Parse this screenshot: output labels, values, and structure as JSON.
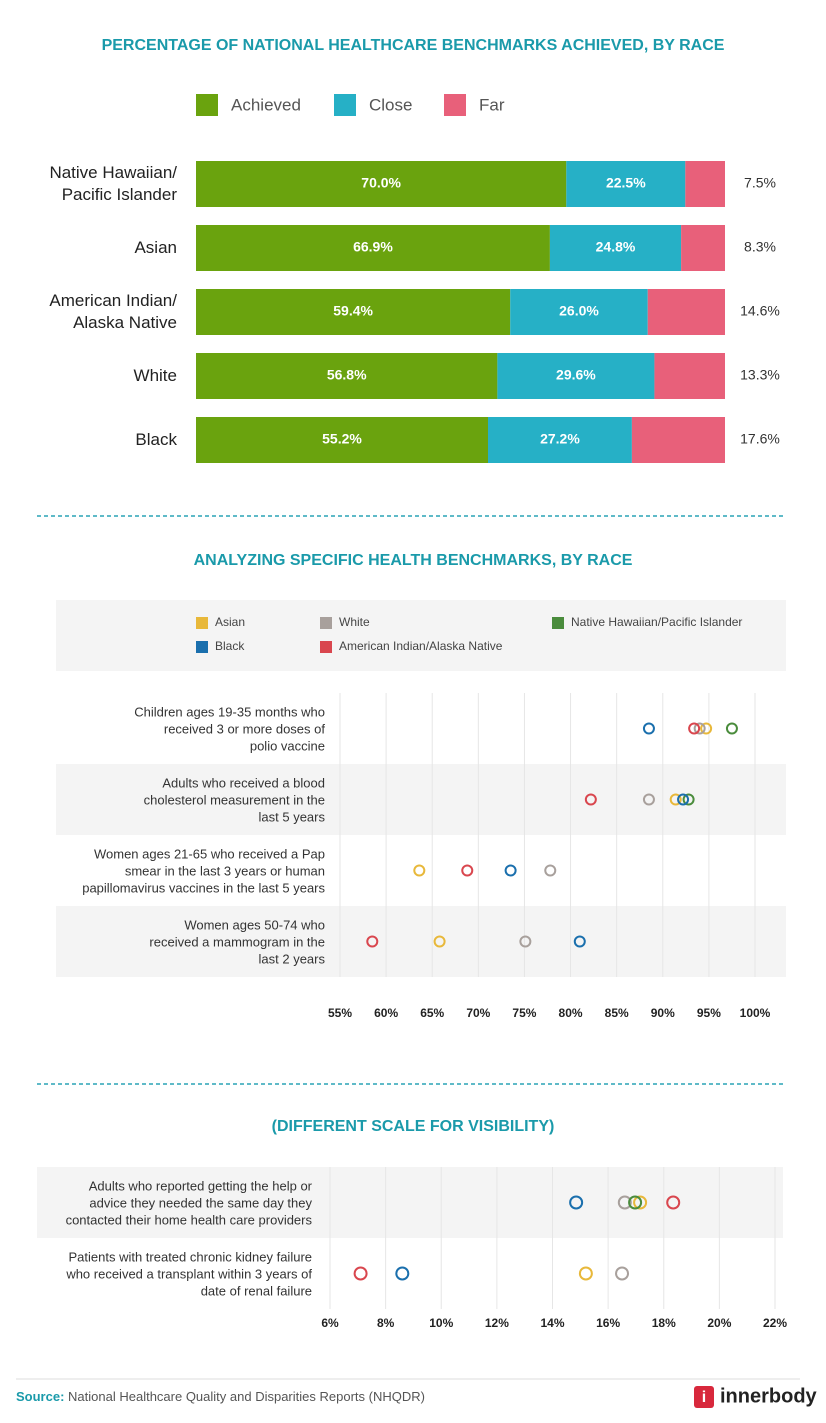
{
  "chart_data": [
    {
      "type": "bar",
      "orientation": "horizontal",
      "stacked": true,
      "title": "PERCENTAGE OF NATIONAL HEALTHCARE BENCHMARKS ACHIEVED, BY RACE",
      "categories": [
        "Native Hawaiian/\nPacific Islander",
        "Asian",
        "American Indian/\nAlaska Native",
        "White",
        "Black"
      ],
      "series": [
        {
          "name": "Achieved",
          "color": "#6aa30e",
          "values": [
            70.0,
            66.9,
            59.4,
            56.8,
            55.2
          ],
          "value_labels": [
            "70.0%",
            "66.9%",
            "59.4%",
            "56.8%",
            "55.2%"
          ]
        },
        {
          "name": "Close",
          "color": "#26b0c6",
          "values": [
            22.5,
            24.8,
            26.0,
            29.6,
            27.2
          ],
          "value_labels": [
            "22.5%",
            "24.8%",
            "26.0%",
            "29.6%",
            "27.2%"
          ]
        },
        {
          "name": "Far",
          "color": "#e8607a",
          "values": [
            7.5,
            8.3,
            14.6,
            13.3,
            17.6
          ],
          "value_labels": [
            "7.5%",
            "8.3%",
            "14.6%",
            "13.3%",
            "17.6%"
          ]
        }
      ]
    },
    {
      "type": "dot",
      "title": "ANALYZING SPECIFIC HEALTH BENCHMARKS, BY RACE",
      "categories": [
        "Children ages 19-35 months who\nreceived 3 or more doses of\npolio vaccine",
        "Adults who received a blood\ncholesterol measurement in the\nlast 5 years",
        "Women ages 21-65 who received a Pap\nsmear in the last 3 years or human\npapillomavirus vaccines in the last 5 years",
        "Women ages 50-74 who\nreceived a mammogram in the\nlast 2 years"
      ],
      "series": [
        {
          "name": "Asian",
          "color": "#e8b83a",
          "values": [
            94.7,
            91.4,
            63.6,
            65.8
          ]
        },
        {
          "name": "White",
          "color": "#a8a09c",
          "values": [
            94.0,
            88.5,
            77.8,
            75.1
          ]
        },
        {
          "name": "Native Hawaiian/Pacific Islander",
          "color": "#4a8c3c",
          "values": [
            97.5,
            92.8,
            null,
            null
          ]
        },
        {
          "name": "Black",
          "color": "#1a6fad",
          "values": [
            88.5,
            92.2,
            73.5,
            81.0
          ]
        },
        {
          "name": "American Indian/Alaska Native",
          "color": "#d9464e",
          "values": [
            93.4,
            82.2,
            68.8,
            58.5
          ]
        }
      ],
      "xlim": [
        55,
        100
      ],
      "xticks": [
        {
          "value": 55,
          "label": "55%"
        },
        {
          "value": 60,
          "label": "60%"
        },
        {
          "value": 65,
          "label": "65%"
        },
        {
          "value": 70,
          "label": "70%"
        },
        {
          "value": 75,
          "label": "75%"
        },
        {
          "value": 80,
          "label": "80%"
        },
        {
          "value": 85,
          "label": "85%"
        },
        {
          "value": 90,
          "label": "90%"
        },
        {
          "value": 95,
          "label": "95%"
        },
        {
          "value": 100,
          "label": "100%"
        }
      ],
      "grid": true
    },
    {
      "type": "dot",
      "title": "(DIFFERENT SCALE FOR VISIBILITY)",
      "categories": [
        "Adults who reported getting the help or\nadvice they needed the same day they\ncontacted their home health care providers",
        "Patients with treated chronic kidney failure\nwho received a transplant within 3 years of\ndate of renal failure"
      ],
      "series": [
        {
          "color": "#e8b83a",
          "values": [
            17.15,
            15.2
          ]
        },
        {
          "color": "#a8a09c",
          "values": [
            16.6,
            16.5
          ]
        },
        {
          "color": "#4a8c3c",
          "values": [
            16.97,
            null
          ]
        },
        {
          "color": "#1a6fad",
          "values": [
            14.85,
            8.6
          ]
        },
        {
          "color": "#d9464e",
          "values": [
            18.34,
            7.1
          ]
        }
      ],
      "xlim": [
        6,
        22
      ],
      "xticks": [
        {
          "value": 6,
          "label": "6%"
        },
        {
          "value": 8,
          "label": "8%"
        },
        {
          "value": 10,
          "label": "10%"
        },
        {
          "value": 12,
          "label": "12%"
        },
        {
          "value": 14,
          "label": "14%"
        },
        {
          "value": 16,
          "label": "16%"
        },
        {
          "value": 18,
          "label": "18%"
        },
        {
          "value": 20,
          "label": "20%"
        },
        {
          "value": 22,
          "label": "22%"
        }
      ],
      "grid": true
    }
  ],
  "footer": {
    "source_label": "Source:",
    "source_text": "National Healthcare Quality and Disparities Reports (NHQDR)",
    "brand": "innerbody"
  }
}
